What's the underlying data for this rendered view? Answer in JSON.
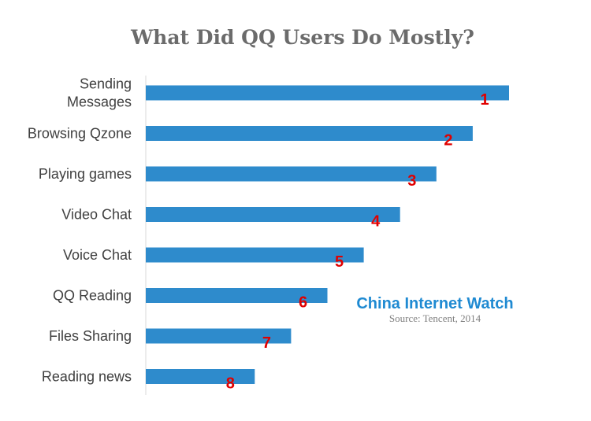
{
  "chart_data": {
    "type": "bar",
    "orientation": "horizontal",
    "title": "What Did QQ Users Do Mostly?",
    "categories": [
      [
        "Sending",
        "Messages"
      ],
      [
        "Browsing Qzone"
      ],
      [
        "Playing games"
      ],
      [
        "Video Chat"
      ],
      [
        "Voice Chat"
      ],
      [
        "QQ Reading"
      ],
      [
        "Files Sharing"
      ],
      [
        "Reading news"
      ]
    ],
    "values": [
      10,
      9,
      8,
      7,
      6,
      5,
      4,
      3
    ],
    "rank_labels": [
      "1",
      "2",
      "3",
      "4",
      "5",
      "6",
      "7",
      "8"
    ],
    "xlim": [
      0,
      10
    ],
    "bar_color": "#2e8bcc",
    "rank_color": "#e00000",
    "grid": false,
    "legend": "none"
  },
  "watermark": {
    "brand": "China Internet Watch",
    "source": "Source: Tencent, 2014"
  }
}
